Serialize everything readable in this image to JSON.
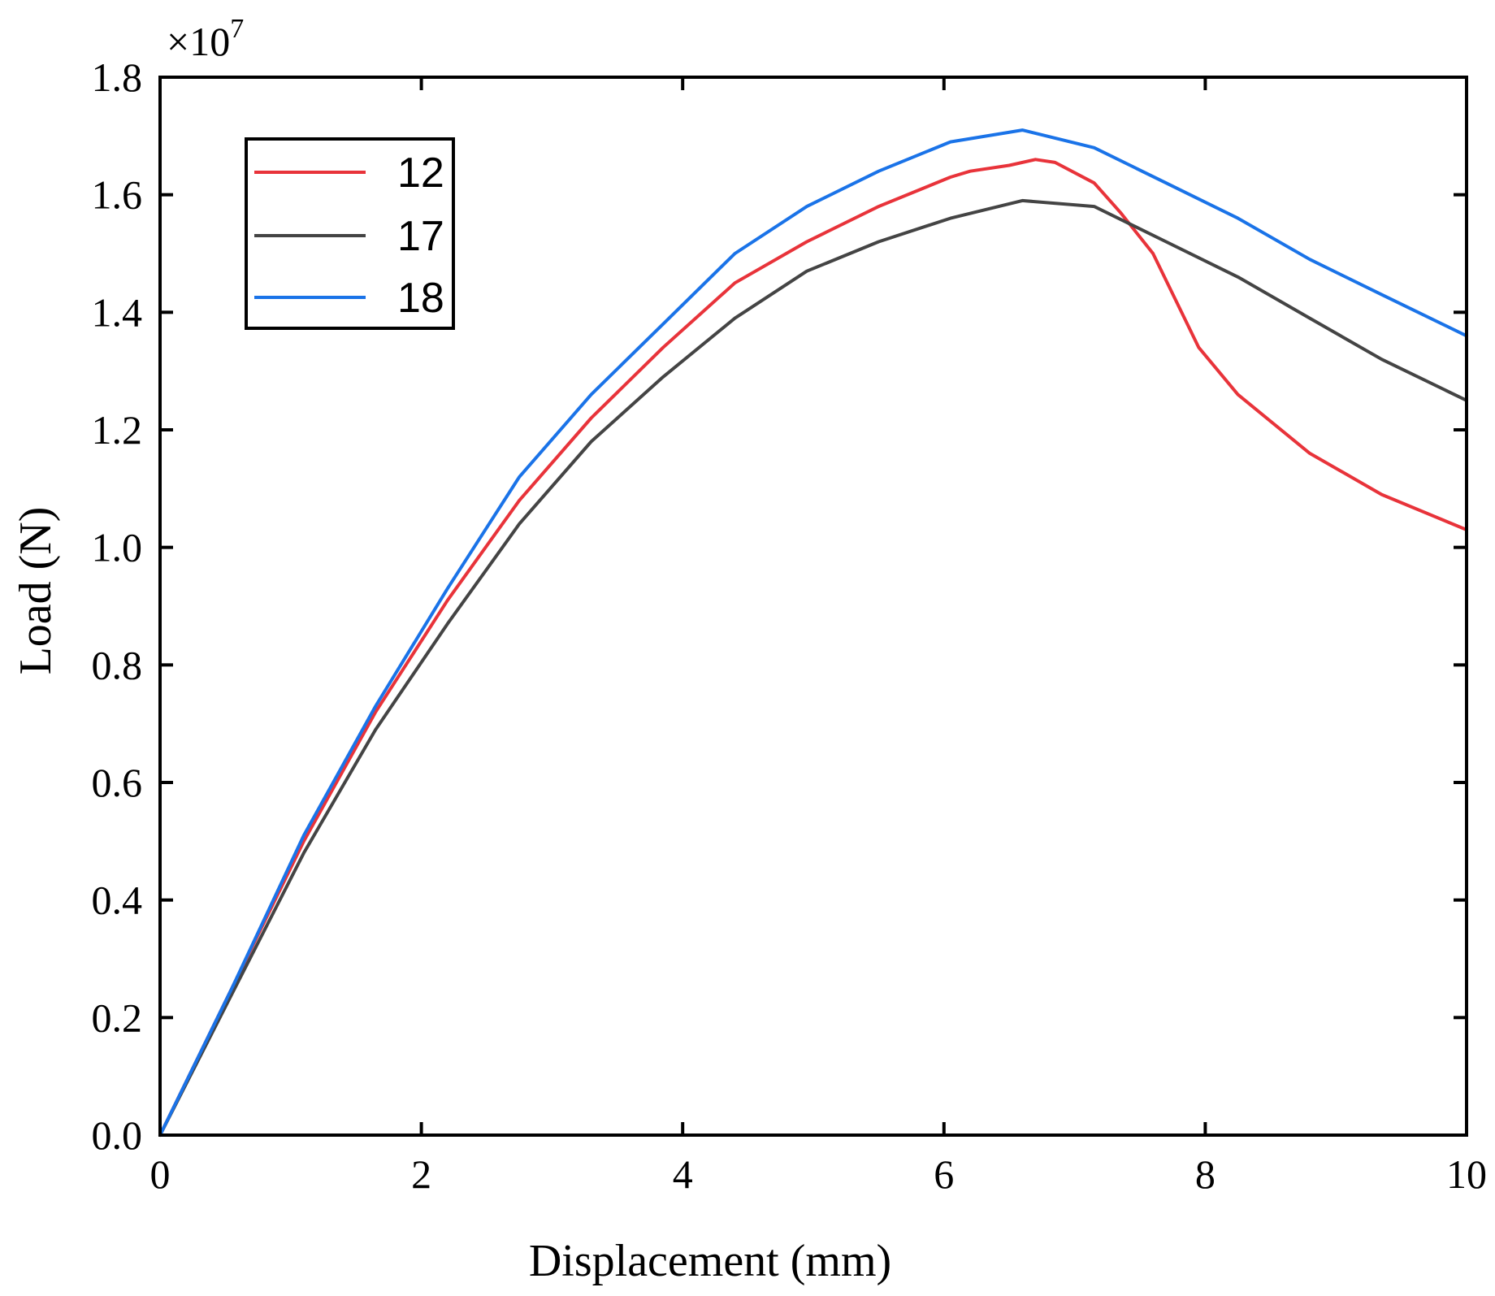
{
  "chart_data": {
    "type": "line",
    "title": "",
    "xlabel": "Displacement (mm)",
    "ylabel": "Load (N)",
    "y_multiplier": {
      "base": "×10",
      "exponent": "7"
    },
    "xlim": [
      0,
      10
    ],
    "ylim": [
      0,
      1.8
    ],
    "x_ticks": [
      0,
      2,
      4,
      6,
      8,
      10
    ],
    "x_tick_labels": [
      "0",
      "2",
      "4",
      "6",
      "8",
      "10"
    ],
    "y_ticks": [
      0,
      0.2,
      0.4,
      0.6,
      0.8,
      1.0,
      1.2,
      1.4,
      1.6,
      1.8
    ],
    "y_tick_labels": [
      "0.0",
      "0.2",
      "0.4",
      "0.6",
      "0.8",
      "1.0",
      "1.2",
      "1.4",
      "1.6",
      "1.8"
    ],
    "grid": false,
    "legend_position": "top-left",
    "series": [
      {
        "name": "12",
        "color": "#e8333a",
        "x": [
          0,
          0.55,
          1.1,
          1.65,
          2.2,
          2.75,
          3.3,
          3.85,
          4.4,
          4.95,
          5.5,
          6.05,
          6.2,
          6.5,
          6.7,
          6.85,
          7.15,
          7.35,
          7.6,
          7.95,
          8.25,
          8.8,
          9.35,
          10.0
        ],
        "values": [
          0,
          0.25,
          0.5,
          0.72,
          0.91,
          1.08,
          1.22,
          1.34,
          1.45,
          1.52,
          1.58,
          1.63,
          1.64,
          1.65,
          1.66,
          1.655,
          1.62,
          1.57,
          1.5,
          1.34,
          1.26,
          1.16,
          1.09,
          1.03
        ]
      },
      {
        "name": "17",
        "color": "#444444",
        "x": [
          0,
          0.55,
          1.1,
          1.65,
          2.2,
          2.75,
          3.3,
          3.85,
          4.4,
          4.95,
          5.5,
          6.05,
          6.6,
          7.15,
          7.7,
          8.25,
          8.8,
          9.35,
          10.0
        ],
        "values": [
          0,
          0.24,
          0.48,
          0.69,
          0.87,
          1.04,
          1.18,
          1.29,
          1.39,
          1.47,
          1.52,
          1.56,
          1.59,
          1.58,
          1.52,
          1.46,
          1.39,
          1.32,
          1.25
        ]
      },
      {
        "name": "18",
        "color": "#1a73e8",
        "x": [
          0,
          0.55,
          1.1,
          1.65,
          2.2,
          2.75,
          3.3,
          3.85,
          4.4,
          4.95,
          5.5,
          6.05,
          6.6,
          7.15,
          7.7,
          8.25,
          8.8,
          9.35,
          10.0
        ],
        "values": [
          0,
          0.25,
          0.51,
          0.73,
          0.93,
          1.12,
          1.26,
          1.38,
          1.5,
          1.58,
          1.64,
          1.69,
          1.71,
          1.68,
          1.62,
          1.56,
          1.49,
          1.43,
          1.36
        ]
      }
    ]
  }
}
